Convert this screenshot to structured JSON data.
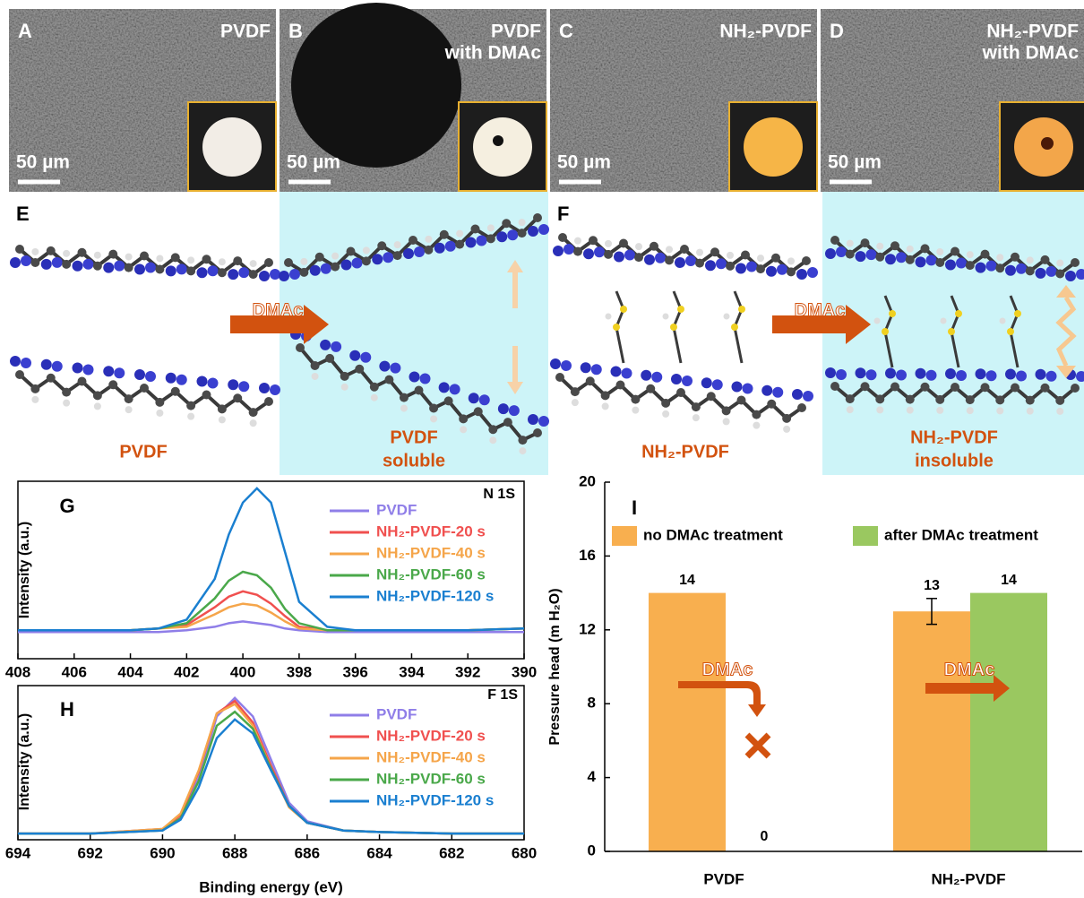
{
  "sem_panels": [
    {
      "letter": "A",
      "title": [
        "PVDF"
      ],
      "scale": "50 µm"
    },
    {
      "letter": "B",
      "title": [
        "PVDF",
        "with DMAc"
      ],
      "scale": "50 µm"
    },
    {
      "letter": "C",
      "title": [
        "NH₂-PVDF"
      ],
      "scale": "50 µm"
    },
    {
      "letter": "D",
      "title": [
        "NH₂-PVDF",
        "with DMAc"
      ],
      "scale": "50 µm"
    }
  ],
  "schematics": [
    {
      "letter": "E",
      "arrow": "DMAc",
      "left_label": [
        "PVDF"
      ],
      "right_label": [
        "PVDF",
        "soluble"
      ]
    },
    {
      "letter": "F",
      "arrow": "DMAc",
      "left_label": [
        "NH₂-PVDF"
      ],
      "right_label": [
        "NH₂-PVDF",
        "insoluble"
      ]
    }
  ],
  "chart_data": [
    {
      "type": "line",
      "panel_label": "G",
      "annotation": "N 1S",
      "ylabel": "Intensity (a.u.)",
      "x": [
        408,
        406,
        404,
        403,
        402,
        401,
        400.5,
        400,
        399.5,
        399,
        398.5,
        398,
        397,
        396,
        394,
        392,
        390
      ],
      "xlim": [
        408,
        390
      ],
      "xticks": [
        408,
        406,
        404,
        402,
        400,
        398,
        396,
        394,
        392,
        390
      ],
      "ylim": [
        0,
        100
      ],
      "series": [
        {
          "name": "PVDF",
          "color": "#8f7ee8",
          "values": [
            15,
            15,
            15,
            15,
            16,
            18,
            20,
            21,
            20,
            19,
            17,
            16,
            15,
            15,
            15,
            15,
            15
          ]
        },
        {
          "name": "NH₂-PVDF-20 s",
          "color": "#f0504f",
          "values": [
            16,
            16,
            16,
            17,
            19,
            29,
            35,
            38,
            36,
            31,
            24,
            18,
            16,
            16,
            16,
            16,
            17
          ]
        },
        {
          "name": "NH₂-PVDF-40 s",
          "color": "#f5a54a",
          "values": [
            16,
            16,
            16,
            17,
            18,
            25,
            29,
            31,
            30,
            26,
            21,
            17,
            16,
            16,
            16,
            16,
            17
          ]
        },
        {
          "name": "NH₂-PVDF-60 s",
          "color": "#4aa84a",
          "values": [
            16,
            16,
            16,
            17,
            20,
            34,
            44,
            49,
            47,
            40,
            28,
            20,
            16,
            16,
            16,
            16,
            17
          ]
        },
        {
          "name": "NH₂-PVDF-120 s",
          "color": "#1a7fd0",
          "values": [
            16,
            16,
            16,
            17,
            22,
            45,
            70,
            88,
            96,
            88,
            60,
            32,
            18,
            16,
            16,
            16,
            17
          ]
        }
      ]
    },
    {
      "type": "line",
      "panel_label": "H",
      "annotation": "F 1S",
      "ylabel": "Intensity (a.u.)",
      "xlabel": "Binding energy (eV)",
      "x": [
        694,
        692,
        690,
        689.5,
        689,
        688.5,
        688,
        687.5,
        687,
        686.5,
        686,
        685,
        684,
        682,
        680
      ],
      "xlim": [
        694,
        680
      ],
      "xticks": [
        694,
        692,
        690,
        688,
        686,
        684,
        682,
        680
      ],
      "ylim": [
        0,
        100
      ],
      "series": [
        {
          "name": "PVDF",
          "color": "#8f7ee8",
          "values": [
            4,
            4,
            6,
            14,
            40,
            80,
            92,
            80,
            52,
            24,
            12,
            6,
            5,
            4,
            4
          ]
        },
        {
          "name": "NH₂-PVDF-20 s",
          "color": "#f0504f",
          "values": [
            4,
            4,
            7,
            16,
            44,
            82,
            90,
            76,
            48,
            22,
            11,
            6,
            5,
            4,
            4
          ]
        },
        {
          "name": "NH₂-PVDF-40 s",
          "color": "#f5a54a",
          "values": [
            4,
            4,
            7,
            17,
            45,
            82,
            88,
            74,
            46,
            21,
            11,
            6,
            5,
            4,
            4
          ]
        },
        {
          "name": "NH₂-PVDF-60 s",
          "color": "#4aa84a",
          "values": [
            4,
            4,
            6,
            14,
            38,
            74,
            83,
            72,
            46,
            22,
            11,
            6,
            5,
            4,
            4
          ]
        },
        {
          "name": "NH₂-PVDF-120 s",
          "color": "#1a7fd0",
          "values": [
            4,
            4,
            6,
            13,
            34,
            66,
            78,
            69,
            45,
            22,
            11,
            6,
            5,
            4,
            4
          ]
        }
      ]
    },
    {
      "type": "bar",
      "panel_label": "I",
      "ylabel": "Pressure head (m H₂O)",
      "categories": [
        "PVDF",
        "NH₂-PVDF"
      ],
      "series": [
        {
          "name": "no DMAc treatment",
          "color": "#f7a63c",
          "values": [
            14,
            13
          ],
          "errors": [
            null,
            0.7
          ]
        },
        {
          "name": "after DMAc treatment",
          "color": "#8fc24f",
          "values": [
            0,
            14
          ]
        }
      ],
      "ylim": [
        0,
        20
      ],
      "yticks": [
        0,
        4,
        8,
        12,
        16,
        20
      ],
      "annotations": [
        "DMAc",
        "DMAc"
      ]
    }
  ]
}
